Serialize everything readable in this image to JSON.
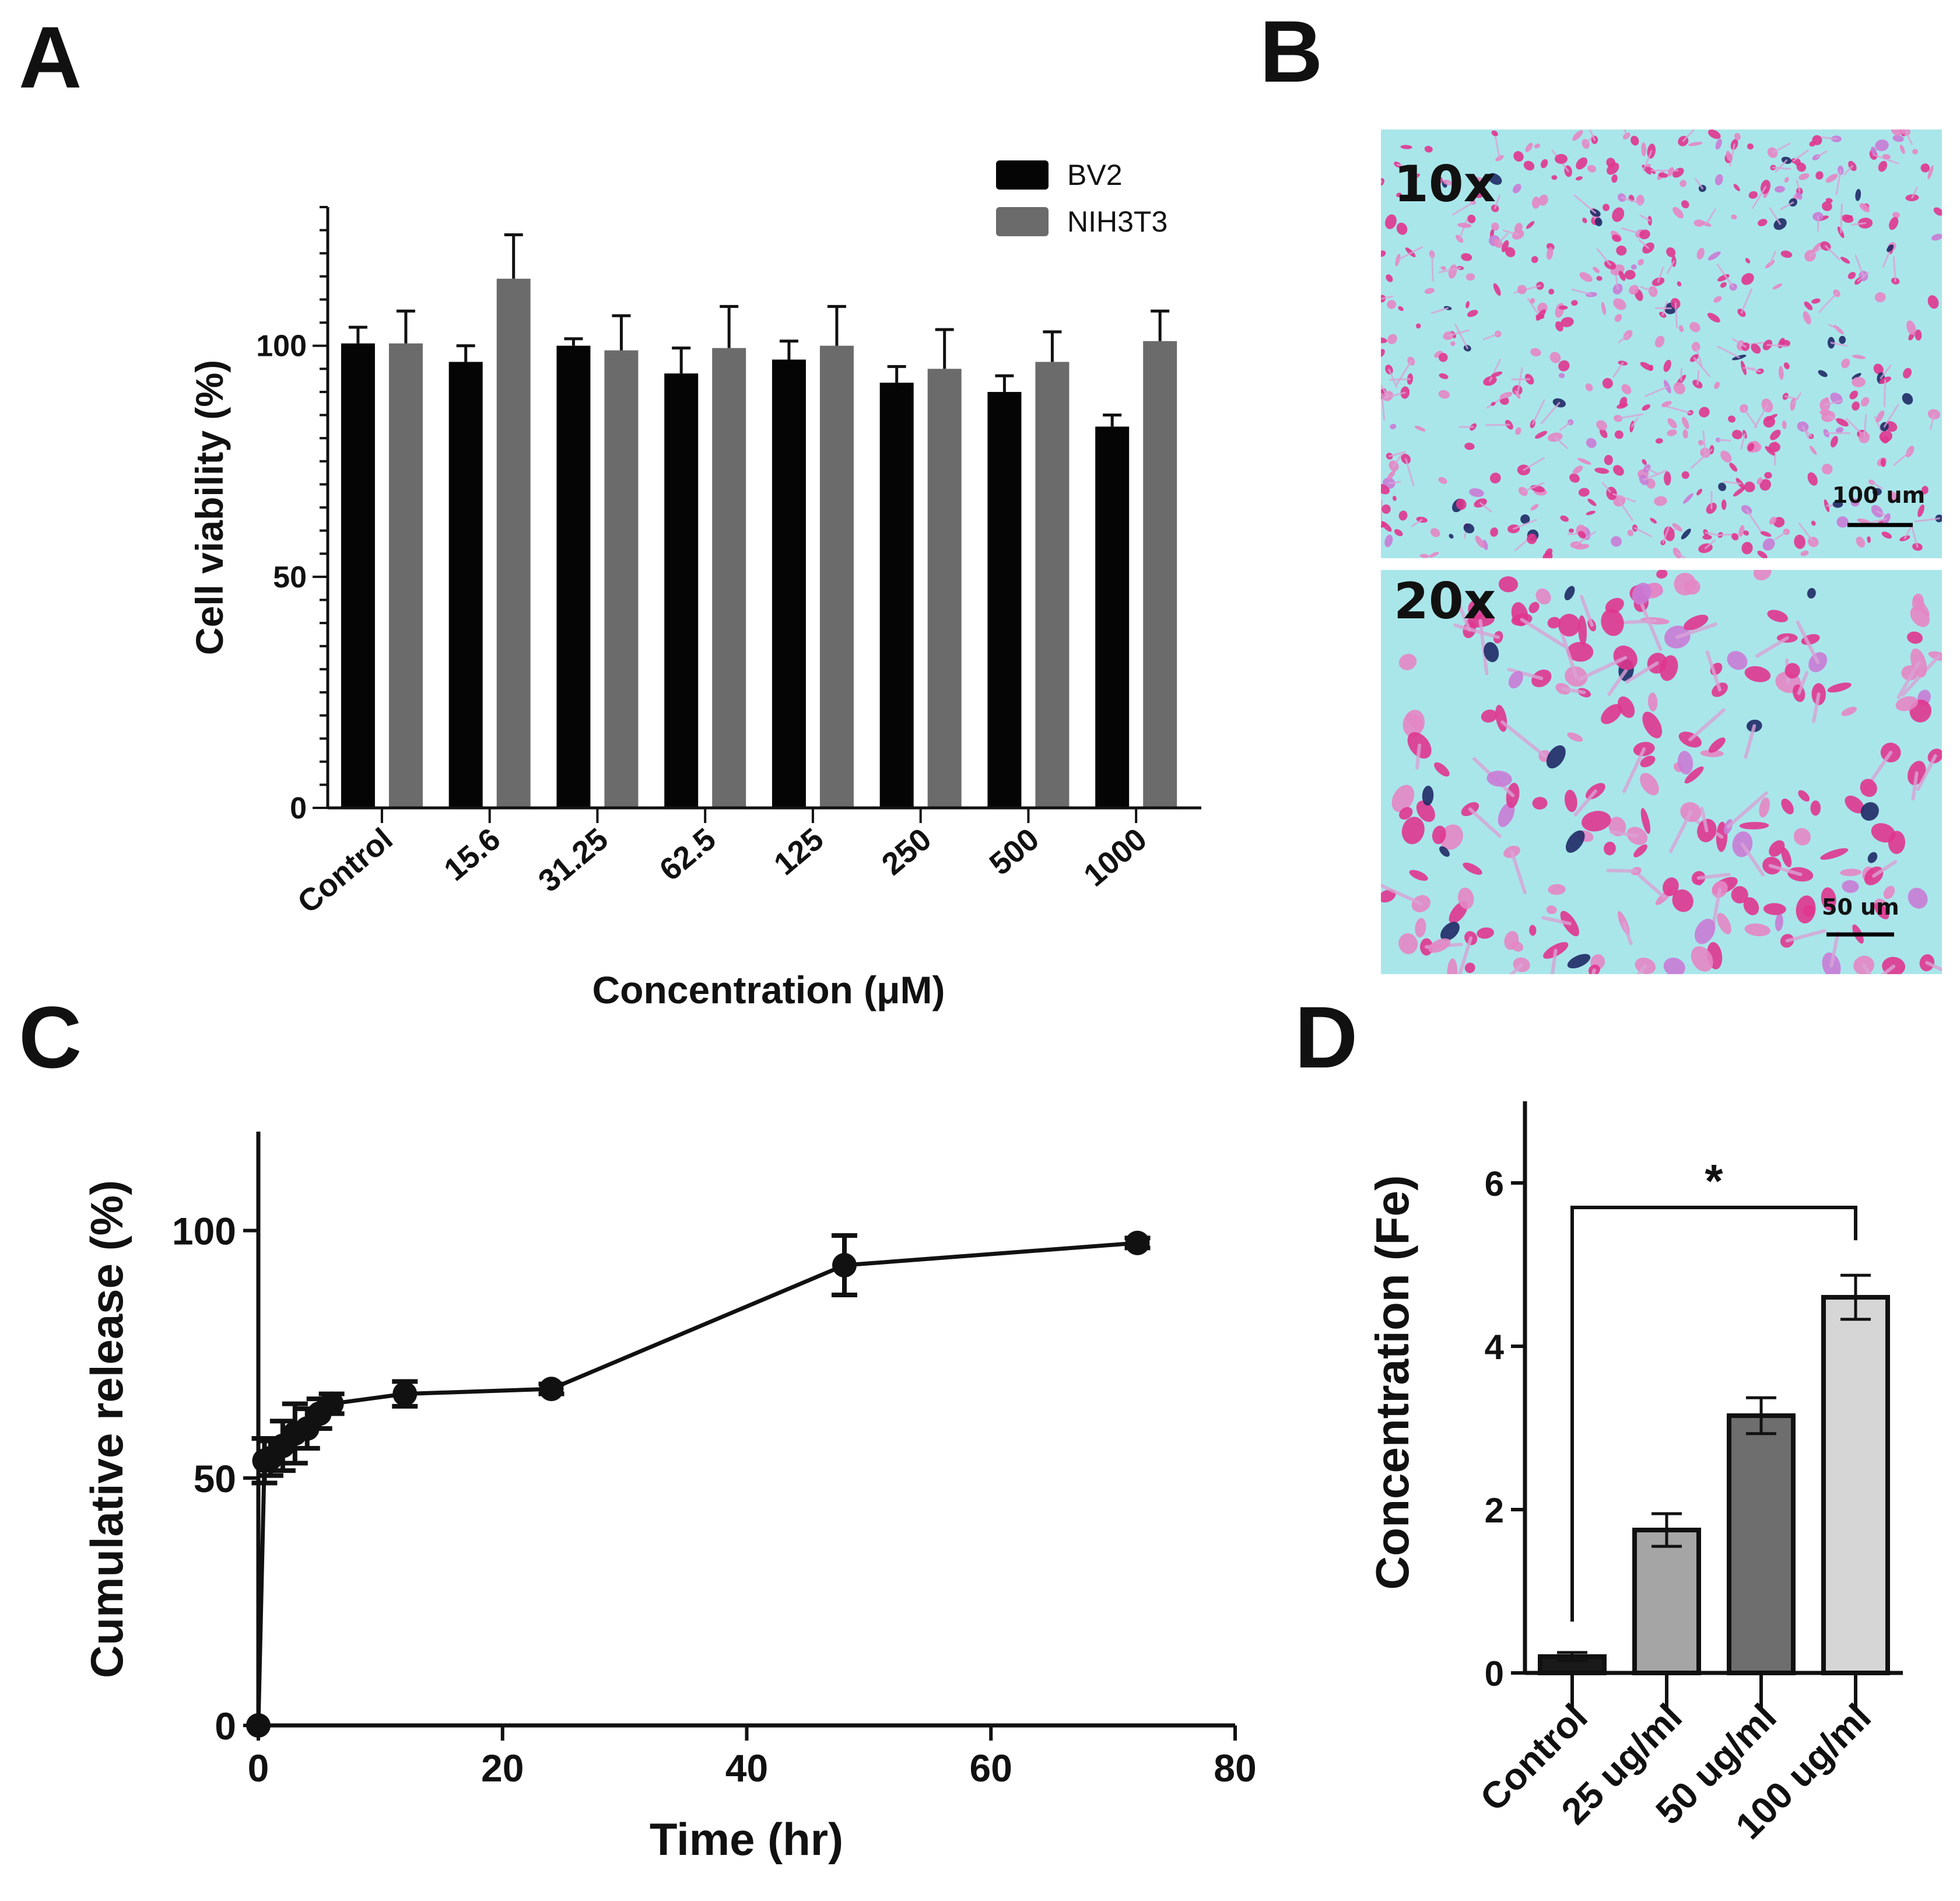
{
  "panels": {
    "A": "A",
    "B": "B",
    "C": "C",
    "D": "D"
  },
  "colors": {
    "bv2": "#050505",
    "nih3t3": "#6b6b6b",
    "axis": "#111111",
    "micrograph_bg": "#a9e6ea"
  },
  "micrographs": {
    "top": {
      "magnification": "10x",
      "scale_bar": "100 um"
    },
    "bottom": {
      "magnification": "20x",
      "scale_bar": "50 um"
    }
  },
  "chart_data": [
    {
      "panel": "A",
      "type": "bar",
      "title": "",
      "xlabel": "Concentration (μM)",
      "ylabel": "Cell viability (%)",
      "ylim": [
        0,
        130
      ],
      "yticks": [
        0,
        50,
        100
      ],
      "categories": [
        "Control",
        "15.6",
        "31.25",
        "62.5",
        "125",
        "250",
        "500",
        "1000"
      ],
      "series": [
        {
          "name": "BV2",
          "values": [
            100.5,
            96.5,
            100,
            94,
            97,
            92,
            90,
            82.5
          ],
          "errors": [
            3.5,
            3.5,
            1.5,
            5.5,
            4,
            3.5,
            3.5,
            2.5
          ]
        },
        {
          "name": "NIH3T3",
          "values": [
            100.5,
            114.5,
            99,
            99.5,
            100,
            95,
            96.5,
            101
          ],
          "errors": [
            7,
            9.5,
            7.5,
            9,
            8.5,
            8.5,
            6.5,
            6.5
          ]
        }
      ],
      "legend": "top-right"
    },
    {
      "panel": "C",
      "type": "line",
      "title": "",
      "xlabel": "Time (hr)",
      "ylabel": "Cumulative release (%)",
      "xlim": [
        0,
        80
      ],
      "ylim": [
        0,
        120
      ],
      "xticks": [
        0,
        20,
        40,
        60,
        80
      ],
      "yticks": [
        0,
        50,
        100
      ],
      "x": [
        0,
        0.5,
        1,
        2,
        3,
        4,
        5,
        6,
        12,
        24,
        48,
        72
      ],
      "y": [
        0,
        53.5,
        54,
        56.5,
        59,
        60,
        63,
        65,
        67,
        68,
        93,
        97.5
      ],
      "errors": [
        0,
        4.5,
        3.5,
        5,
        6,
        4,
        3,
        2,
        2.5,
        1,
        6,
        1
      ]
    },
    {
      "panel": "D",
      "type": "bar",
      "title": "",
      "xlabel": "",
      "ylabel": "Concentration (Fe)",
      "ylim": [
        0,
        7
      ],
      "yticks": [
        0,
        2,
        4,
        6
      ],
      "categories": [
        "Control",
        "25 ug/ml",
        "50 ug/ml",
        "100 ug/ml"
      ],
      "values": [
        0.2,
        1.75,
        3.15,
        4.6
      ],
      "errors": [
        0.05,
        0.2,
        0.22,
        0.27
      ],
      "bar_colors": [
        "#1a1a1a",
        "#a5a5a5",
        "#6e6e6e",
        "#d6d6d6"
      ],
      "annotation": {
        "text": "*",
        "from": "Control",
        "to": "100 ug/ml"
      }
    }
  ]
}
